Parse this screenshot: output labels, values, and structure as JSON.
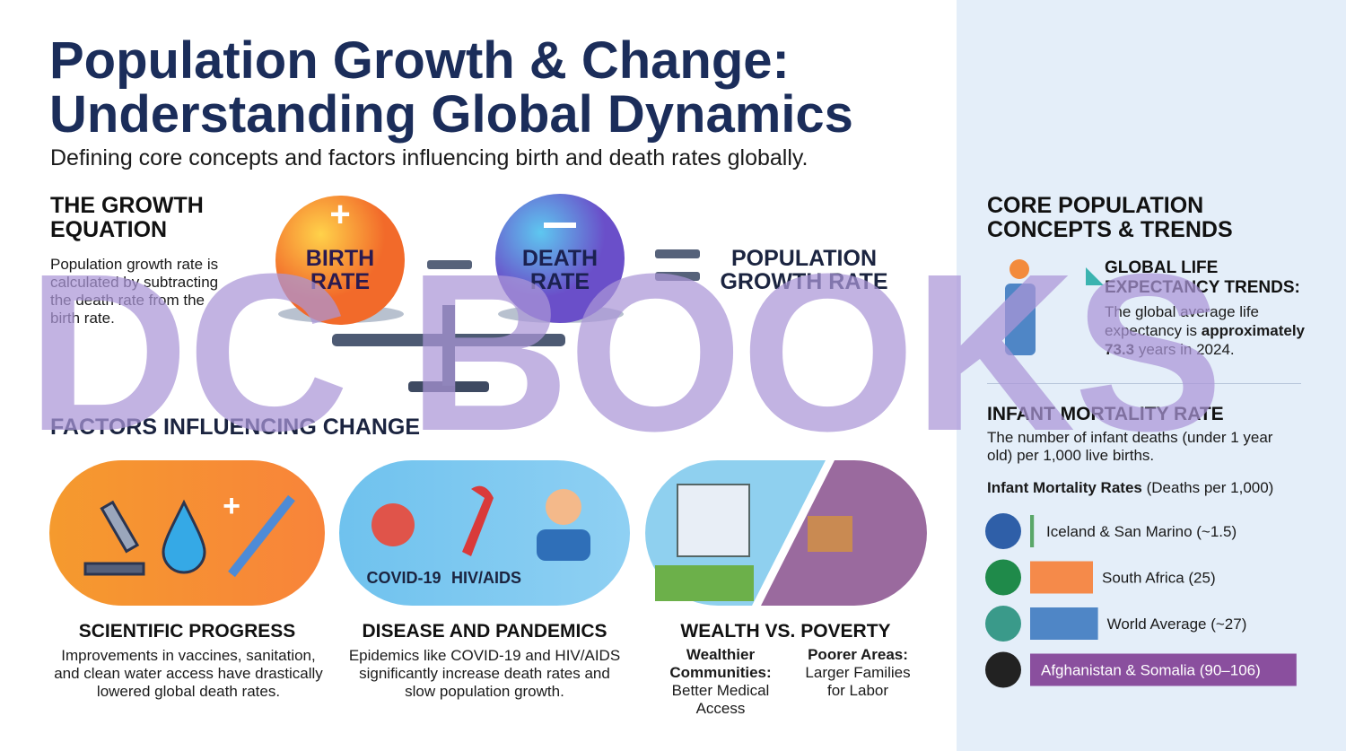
{
  "header": {
    "title_line1": "Population Growth & Change:",
    "title_line2": "Understanding Global Dynamics",
    "subtitle": "Defining core concepts and factors influencing birth and death rates globally."
  },
  "equation": {
    "heading_line1": "THE GROWTH",
    "heading_line2": "EQUATION",
    "text": "Population growth rate is calculated by subtracting the death rate from the birth rate.",
    "birth_line1": "BIRTH",
    "birth_line2": "RATE",
    "death_line1": "DEATH",
    "death_line2": "RATE",
    "result_line1": "POPULATION",
    "result_line2": "GROWTH RATE"
  },
  "factors": {
    "heading": "FACTORS INFLUENCING CHANGE",
    "items": [
      {
        "title": "SCIENTIFIC PROGRESS",
        "text": "Improvements in vaccines, sanitation, and clean water access have drastically lowered global death rates."
      },
      {
        "title": "DISEASE AND PANDEMICS",
        "text": "Epidemics like COVID-19 and HIV/AIDS significantly increase death rates and slow population growth.",
        "tag1": "COVID-19",
        "tag2": "HIV/AIDS"
      },
      {
        "title": "WEALTH VS. POVERTY",
        "left_title": "Wealthier Communities:",
        "left_text": "Better Medical Access",
        "right_title": "Poorer Areas:",
        "right_text": "Larger Families for Labor"
      }
    ]
  },
  "sidebar": {
    "heading_line1": "CORE POPULATION",
    "heading_line2": "CONCEPTS & TRENDS",
    "life": {
      "title_line1": "GLOBAL LIFE",
      "title_line2": "EXPECTANCY TRENDS:",
      "text": "The global average life expectancy is",
      "bold": "approximately 73.3",
      "text_end": "years in 2024."
    },
    "infant": {
      "title": "INFANT MORTALITY RATE",
      "text": "The number of infant deaths (under 1 year old) per 1,000 live births.",
      "chart_title_bold": "Infant Mortality Rates",
      "chart_title_rest": "(Deaths per 1,000)",
      "bars": [
        {
          "label": "Iceland & San Marino (~1.5)",
          "value": 1.5,
          "color": "#5aa769"
        },
        {
          "label": "South Africa (25)",
          "value": 25,
          "color": "#f58a4a"
        },
        {
          "label": "World Average (~27)",
          "value": 27,
          "color": "#4f86c6"
        },
        {
          "label": "Afghanistan & Somalia (90–106)",
          "value": 106,
          "color": "#8a4f9e"
        }
      ]
    }
  },
  "watermark": "DC BOOKS"
}
